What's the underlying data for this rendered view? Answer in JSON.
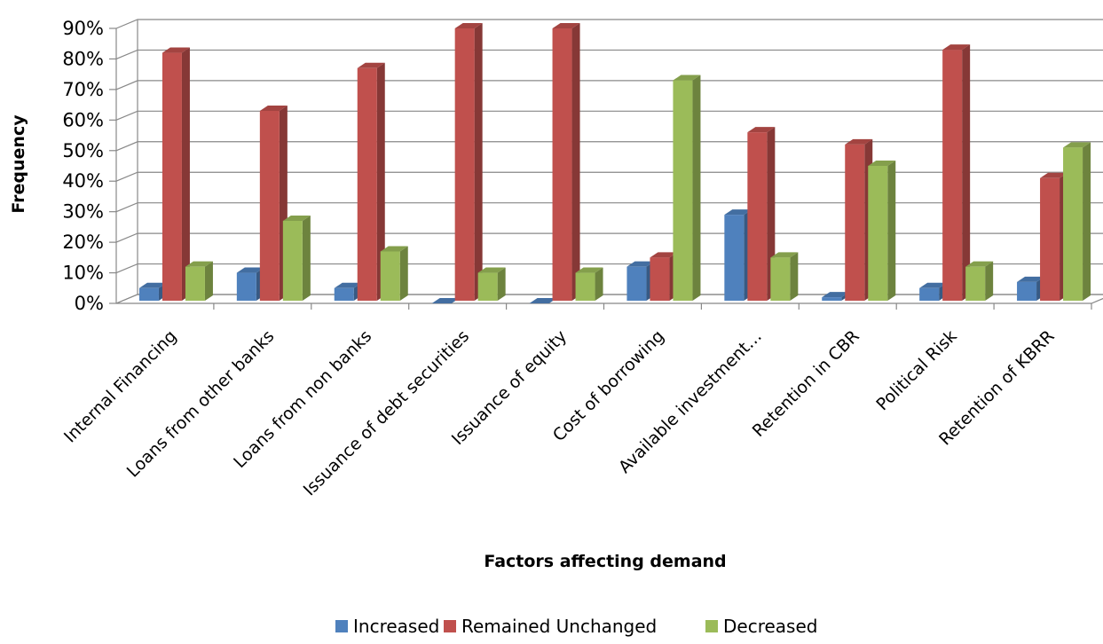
{
  "chart_data": {
    "type": "bar",
    "title": "",
    "xlabel": "Factors affecting demand",
    "ylabel": "Frequency",
    "ylim": [
      0,
      90
    ],
    "ytick_labels": [
      "0%",
      "10%",
      "20%",
      "30%",
      "40%",
      "50%",
      "60%",
      "70%",
      "80%",
      "90%"
    ],
    "grid": true,
    "legend_position": "bottom",
    "categories": [
      "Internal Financing",
      "Loans from other banks",
      "Loans from non banks",
      "Issuance of debt securities",
      "Issuance of equity",
      "Cost of borrowing",
      "Available investment…",
      "Retention in CBR",
      "Political Risk",
      "Retention of KBRR"
    ],
    "series": [
      {
        "name": "Increased",
        "color": "#4F81BD",
        "values": [
          5,
          10,
          5,
          0,
          0,
          12,
          29,
          2,
          5,
          7
        ]
      },
      {
        "name": "Remained Unchanged",
        "color": "#C0504D",
        "values": [
          82,
          63,
          77,
          90,
          90,
          15,
          56,
          52,
          83,
          41
        ]
      },
      {
        "name": "Decreased",
        "color": "#9BBB59",
        "values": [
          12,
          27,
          17,
          10,
          10,
          73,
          15,
          45,
          12,
          51
        ]
      }
    ]
  }
}
